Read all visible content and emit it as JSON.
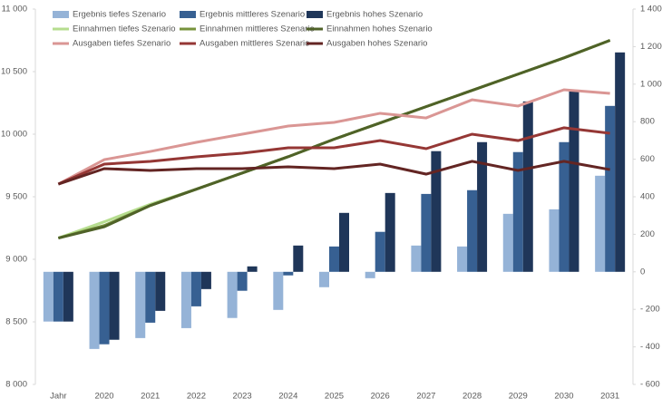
{
  "chart_data": {
    "type": "combo",
    "categories": [
      "Jahr",
      "2020",
      "2021",
      "2022",
      "2023",
      "2024",
      "2025",
      "2026",
      "2027",
      "2028",
      "2029",
      "2030",
      "2031"
    ],
    "ylim": [
      8000,
      11000
    ],
    "yticks": [
      {
        "value": 8000,
        "label": "8 000"
      },
      {
        "value": 8500,
        "label": "8 500"
      },
      {
        "value": 9000,
        "label": "9 000"
      },
      {
        "value": 9500,
        "label": "9 500"
      },
      {
        "value": 10000,
        "label": "10 000"
      },
      {
        "value": 10500,
        "label": "10 500"
      },
      {
        "value": 11000,
        "label": "11 000"
      }
    ],
    "y2lim": [
      -600,
      1400
    ],
    "y2ticks": [
      {
        "value": -600,
        "label": "- 600"
      },
      {
        "value": -400,
        "label": "- 400"
      },
      {
        "value": -200,
        "label": "- 200"
      },
      0,
      200,
      400,
      600,
      800,
      {
        "value": 1000,
        "label": "1 000"
      },
      {
        "value": 1200,
        "label": "1 200"
      },
      {
        "value": 1400,
        "label": "1 400"
      }
    ],
    "series": [
      {
        "name": "Ergebnis tiefes Szenario",
        "type": "bar",
        "axis": "y2",
        "color": "#95b3d7",
        "values": [
          -265,
          -411,
          -353,
          -300,
          -246,
          -203,
          -82,
          -34,
          140,
          135,
          309,
          333,
          512
        ]
      },
      {
        "name": "Ergebnis mittleres Szenario",
        "type": "bar",
        "axis": "y2",
        "color": "#376092",
        "values": [
          -265,
          -386,
          -271,
          -184,
          -101,
          -19,
          135,
          213,
          415,
          435,
          638,
          691,
          884
        ]
      },
      {
        "name": "Ergebnis hohes Szenario",
        "type": "bar",
        "axis": "y2",
        "color": "#1f3659",
        "values": [
          -265,
          -362,
          -208,
          -92,
          29,
          140,
          314,
          420,
          643,
          691,
          908,
          961,
          1169
        ]
      },
      {
        "name": "Einnahmen tiefes Szenario",
        "type": "line",
        "color": "#b6dd8f",
        "values": [
          9170,
          9300,
          9440,
          9560,
          9690,
          9820,
          9960,
          10090,
          10220,
          10350,
          10480,
          10610,
          10750
        ]
      },
      {
        "name": "Einnahmen mittleres Szenario",
        "type": "line",
        "color": "#77933c",
        "values": [
          9170,
          9270,
          9430,
          9560,
          9690,
          9820,
          9960,
          10090,
          10220,
          10350,
          10480,
          10610,
          10750
        ]
      },
      {
        "name": "Einnahmen hohes Szenario",
        "type": "line",
        "color": "#4f6228",
        "values": [
          9170,
          9260,
          9430,
          9560,
          9690,
          9820,
          9960,
          10090,
          10220,
          10350,
          10480,
          10610,
          10750
        ]
      },
      {
        "name": "Ausgaben tiefes Szenario",
        "type": "line",
        "color": "#da9694",
        "values": [
          9601,
          9797,
          9862,
          9935,
          10000,
          10065,
          10094,
          10167,
          10130,
          10275,
          10225,
          10355,
          10326
        ]
      },
      {
        "name": "Ausgaben mittleres Szenario",
        "type": "line",
        "color": "#953735",
        "values": [
          9601,
          9761,
          9783,
          9819,
          9848,
          9891,
          9891,
          9949,
          9884,
          10000,
          9949,
          10051,
          10007
        ]
      },
      {
        "name": "Ausgaben hohes Szenario",
        "type": "line",
        "color": "#632523",
        "values": [
          9601,
          9725,
          9710,
          9725,
          9725,
          9739,
          9725,
          9761,
          9681,
          9783,
          9710,
          9783,
          9717
        ]
      }
    ]
  }
}
